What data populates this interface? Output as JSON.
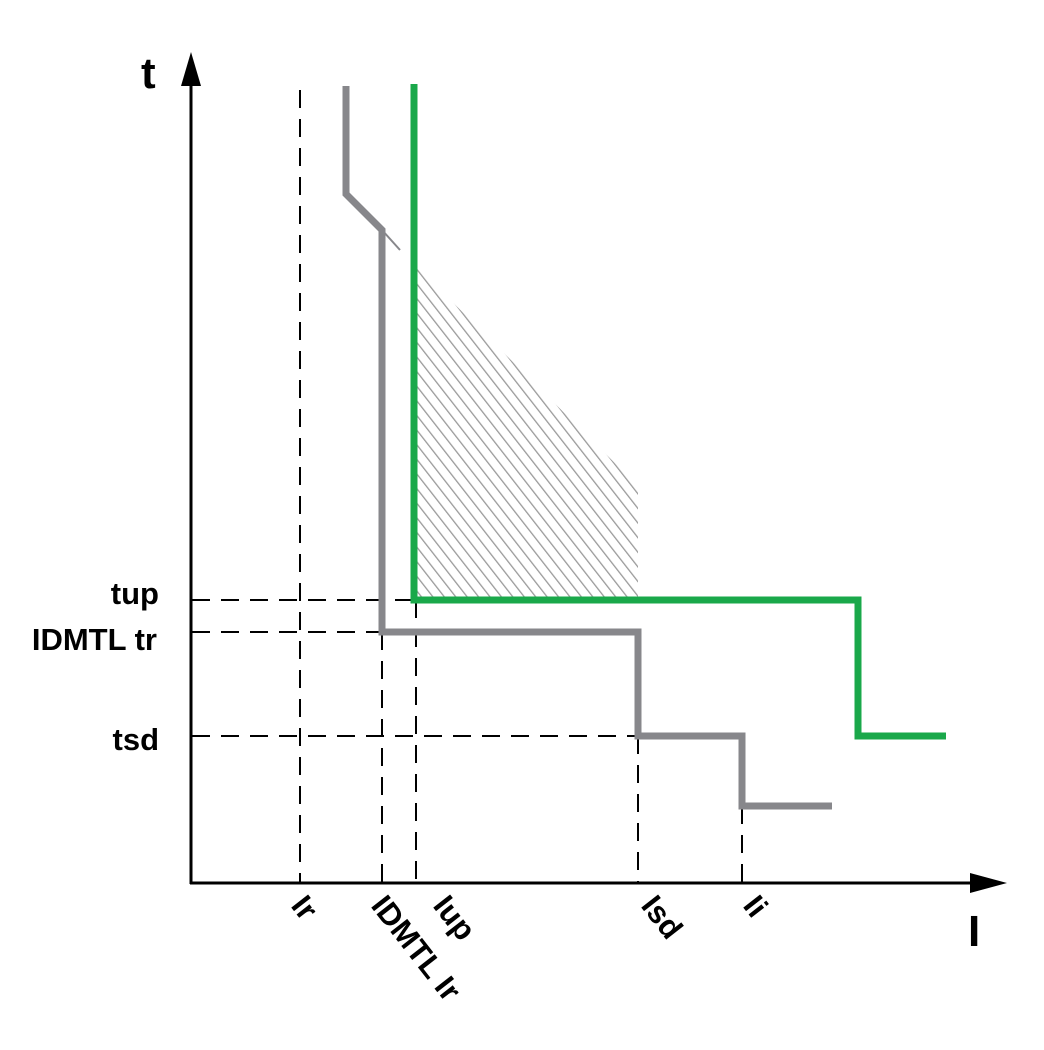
{
  "axes": {
    "y_label": "t",
    "x_label": "I"
  },
  "y_ticks": [
    "tup",
    "IDMTL tr",
    "tsd"
  ],
  "x_ticks": [
    "Ir",
    "IDMTL Ir",
    "Iup",
    "Isd",
    "Ii"
  ],
  "colors": {
    "axis": "#000000",
    "grey_curve": "#87878b",
    "green_curve": "#1aa84a",
    "hatch": "#9a9a9a"
  }
}
